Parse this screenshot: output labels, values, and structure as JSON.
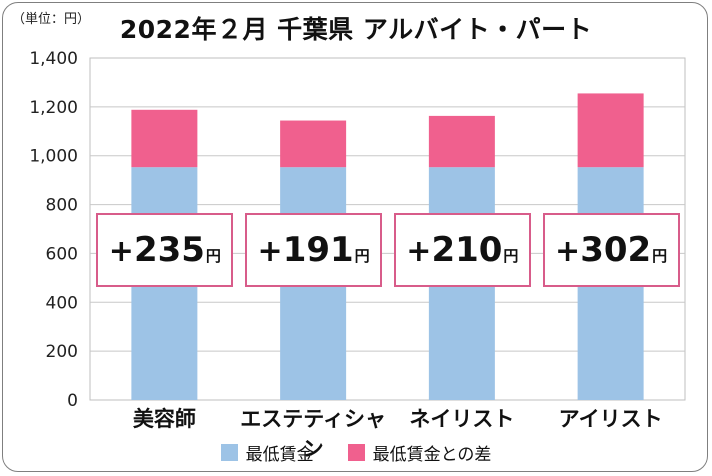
{
  "unit_label": "（単位：円）",
  "title": "2022年２月 千葉県 アルバイト・パート",
  "colors": {
    "base": "#9dc3e6",
    "diff": "#f0608e",
    "callout_border": "#d85c8a",
    "grid": "#c8c8c8"
  },
  "chart_data": {
    "type": "bar",
    "stacked": true,
    "title": "2022年２月 千葉県 アルバイト・パート",
    "categories": [
      "美容師",
      "エステティシャン",
      "ネイリスト",
      "アイリスト"
    ],
    "series": [
      {
        "name": "最低賃金",
        "values": [
          953,
          953,
          953,
          953
        ]
      },
      {
        "name": "最低賃金との差",
        "values": [
          235,
          191,
          210,
          302
        ]
      }
    ],
    "ylim": [
      0,
      1400
    ],
    "yticks": [
      0,
      200,
      400,
      600,
      800,
      1000,
      1200,
      1400
    ],
    "ytick_labels": [
      "0",
      "200",
      "400",
      "600",
      "800",
      "1,000",
      "1,200",
      "1,400"
    ],
    "grid": true,
    "legend_position": "bottom",
    "annotations": [
      {
        "sign": "+",
        "value": "235",
        "unit": "円"
      },
      {
        "sign": "+",
        "value": "191",
        "unit": "円"
      },
      {
        "sign": "+",
        "value": "210",
        "unit": "円"
      },
      {
        "sign": "+",
        "value": "302",
        "unit": "円"
      }
    ]
  },
  "legend": [
    {
      "label": "最低賃金",
      "color": "#9dc3e6"
    },
    {
      "label": "最低賃金との差",
      "color": "#f0608e"
    }
  ]
}
